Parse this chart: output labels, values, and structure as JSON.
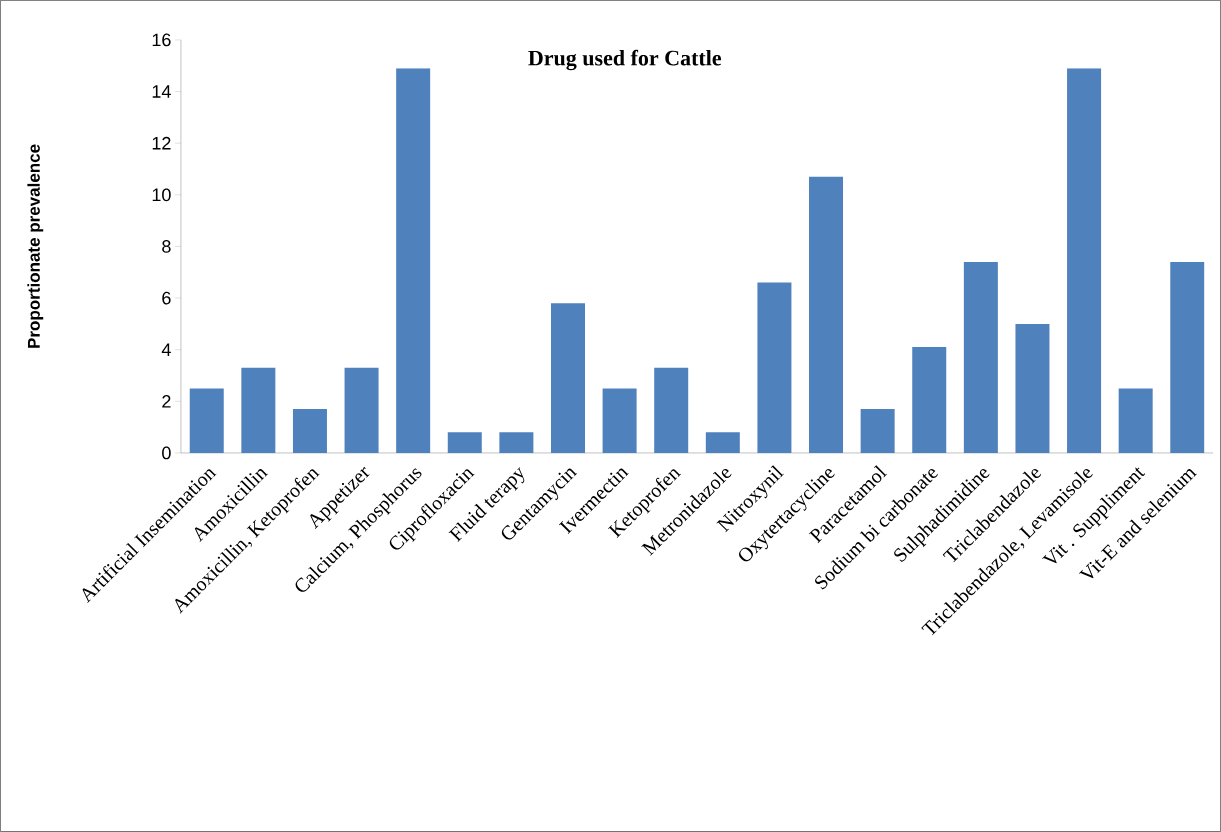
{
  "chart_data": {
    "type": "bar",
    "title": "Drug used for Cattle",
    "ylabel": "Proportionate prevalence",
    "categories": [
      "Artificial Insemination",
      "Amoxicillin",
      "Amoxicillin, Ketoprofen",
      "Appetizer",
      "Calcium, Phosphorus",
      "Ciprofloxacin",
      "Fluid terapy",
      "Gentamycin",
      "Ivermectin",
      "Ketoprofen",
      "Metronidazole",
      "Nitroxynil",
      "Oxytertacycline",
      "Paracetamol",
      "Sodium bi carbonate",
      "Sulphadimidine",
      "Triclabendazole",
      "Triclabendazole, Levamisole",
      "Vit . Suppliment",
      "Vit-E and selenium"
    ],
    "values": [
      2.5,
      3.3,
      1.7,
      3.3,
      14.9,
      0.8,
      0.8,
      5.8,
      2.5,
      3.3,
      0.8,
      6.6,
      10.7,
      1.7,
      4.1,
      7.4,
      5.0,
      14.9,
      2.5,
      7.4
    ],
    "color": "#4f81bd",
    "ylim": [
      0,
      16
    ],
    "yticks": [
      0,
      2,
      4,
      6,
      8,
      10,
      12,
      14,
      16
    ]
  }
}
